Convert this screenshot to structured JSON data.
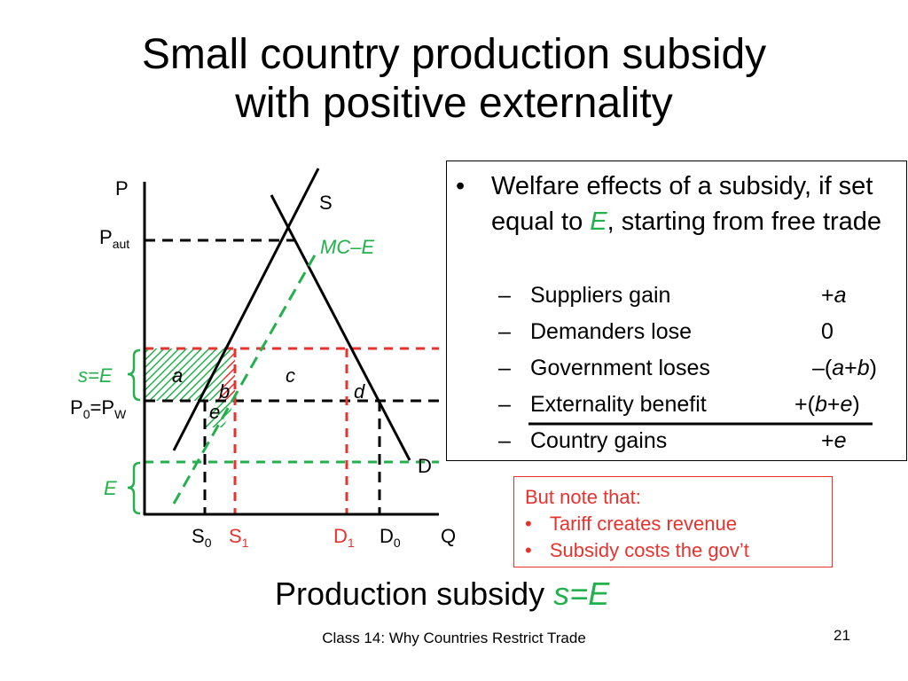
{
  "slide": {
    "title_line1": "Small country production subsidy",
    "title_line2": "with positive externality",
    "caption_text": "Production subsidy ",
    "caption_var": "s=E",
    "footer": "Class 14:  Why Countries Restrict Trade",
    "slide_number": "21"
  },
  "diagram": {
    "axis_labels": {
      "p": "P",
      "q": "Q"
    },
    "curve_labels": {
      "s": "S",
      "mce": "MC–E",
      "d": "D"
    },
    "price_labels": {
      "paut_main": "P",
      "paut_sub": "aut",
      "p0pw_a": "P",
      "p0pw_a_sub": "0",
      "p0pw_b": "=P",
      "p0pw_b_sub": "W",
      "se": "s=E",
      "e": "E"
    },
    "quantity_labels": {
      "s0_main": "S",
      "s0_sub": "0",
      "s1_main": "S",
      "s1_sub": "1",
      "d1_main": "D",
      "d1_sub": "1",
      "d0_main": "D",
      "d0_sub": "0"
    },
    "areas": {
      "a": "a",
      "b": "b",
      "c": "c",
      "d": "d",
      "e": "e"
    },
    "colors": {
      "green": "#22b14c",
      "red": "#e8322e",
      "black": "#000000"
    }
  },
  "panel": {
    "bullet": "•",
    "heading_pre": "Welfare effects of a subsidy, if set equal to ",
    "heading_var": "E",
    "heading_post": ", starting from free trade",
    "dash": "–",
    "items": [
      {
        "label": "Suppliers gain",
        "value": "+a"
      },
      {
        "label": "Demanders lose",
        "value": "0"
      },
      {
        "label": "Government loses",
        "value": "–(a+b)"
      },
      {
        "label": "Externality benefit",
        "value": "+(b+e)"
      },
      {
        "label": "Country gains",
        "value": "+e"
      }
    ]
  },
  "note": {
    "heading": "But note that:",
    "bullet": "•",
    "points": [
      "Tariff creates revenue",
      "Subsidy costs the gov’t"
    ]
  }
}
